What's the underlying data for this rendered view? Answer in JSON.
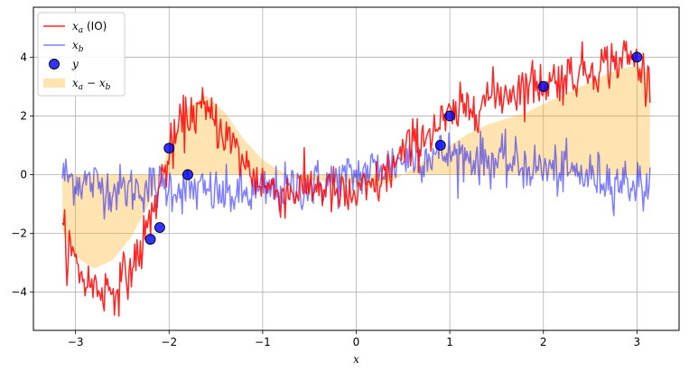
{
  "chart_data": {
    "type": "line",
    "title": "",
    "xlabel": "x",
    "ylabel": "",
    "xlim": [
      -3.45,
      3.45
    ],
    "ylim": [
      -5.3,
      5.7
    ],
    "xticks": [
      -3,
      -2,
      -1,
      0,
      1,
      2,
      3
    ],
    "yticks": [
      -4,
      -2,
      0,
      2,
      4
    ],
    "xtick_labels": [
      "−3",
      "−2",
      "−1",
      "0",
      "1",
      "2",
      "3"
    ],
    "ytick_labels": [
      "−4",
      "−2",
      "0",
      "2",
      "4"
    ],
    "grid": true,
    "legend_position": "top-left",
    "legend": [
      {
        "label": "x_a (IO)",
        "main": "x",
        "sub": "a",
        "suffix": " (IO)",
        "kind": "line",
        "color": "#ff0000"
      },
      {
        "label": "x_b",
        "main": "x",
        "sub": "b",
        "suffix": "",
        "kind": "line",
        "color": "#0000ff"
      },
      {
        "label": "y",
        "main": "y",
        "sub": "",
        "suffix": "",
        "kind": "marker",
        "color": "#0000ff"
      },
      {
        "label": "x_a − x_b",
        "main": "x",
        "sub": "a",
        "suffix": "",
        "extra_main": " − x",
        "extra_sub": "b",
        "kind": "fill",
        "color": "#ffa500"
      }
    ],
    "colors": {
      "xa": "#ff0000",
      "xb": "#0000ff",
      "y": "#0000ff",
      "fill": "#ffa500"
    },
    "series": [
      {
        "name": "x_a (IO)",
        "x": [
          -3.14,
          -3.0,
          -2.9,
          -2.8,
          -2.7,
          -2.6,
          -2.5,
          -2.4,
          -2.3,
          -2.2,
          -2.1,
          -2.0,
          -1.9,
          -1.8,
          -1.7,
          -1.6,
          -1.5,
          -1.4,
          -1.3,
          -1.2,
          -1.1,
          -1.0,
          -0.9,
          -0.8,
          -0.7,
          -0.6,
          -0.5,
          -0.4,
          -0.3,
          -0.2,
          -0.1,
          0.0,
          0.1,
          0.2,
          0.3,
          0.4,
          0.5,
          0.6,
          0.7,
          0.8,
          0.9,
          1.0,
          1.1,
          1.2,
          1.3,
          1.4,
          1.5,
          1.6,
          1.7,
          1.8,
          1.9,
          2.0,
          2.1,
          2.2,
          2.3,
          2.4,
          2.5,
          2.6,
          2.7,
          2.8,
          2.9,
          3.0,
          3.14
        ],
        "values": [
          -2.0,
          -3.0,
          -3.6,
          -3.8,
          -3.9,
          -3.9,
          -3.6,
          -3.2,
          -2.5,
          -1.5,
          -0.4,
          0.6,
          1.5,
          2.0,
          2.2,
          2.1,
          1.8,
          1.4,
          0.9,
          0.4,
          0.0,
          -0.3,
          -0.5,
          -0.6,
          -0.6,
          -0.5,
          -0.4,
          -0.4,
          -0.5,
          -0.7,
          -0.8,
          -0.7,
          -0.6,
          -0.4,
          -0.1,
          0.3,
          0.7,
          1.0,
          1.3,
          1.5,
          1.7,
          1.9,
          2.1,
          2.3,
          2.5,
          2.6,
          2.7,
          2.8,
          2.9,
          3.0,
          3.1,
          3.1,
          3.2,
          3.3,
          3.4,
          3.5,
          3.6,
          3.7,
          3.8,
          3.9,
          4.0,
          3.8,
          3.1
        ]
      },
      {
        "name": "x_b",
        "x": [
          -3.14,
          -3.0,
          -2.8,
          -2.6,
          -2.4,
          -2.2,
          -2.0,
          -1.8,
          -1.6,
          -1.4,
          -1.2,
          -1.0,
          -0.8,
          -0.6,
          -0.4,
          -0.2,
          0.0,
          0.2,
          0.4,
          0.6,
          0.8,
          1.0,
          1.2,
          1.4,
          1.6,
          1.8,
          2.0,
          2.2,
          2.4,
          2.6,
          2.8,
          3.0,
          3.14
        ],
        "values": [
          0.0,
          -0.2,
          -0.3,
          -0.5,
          -0.5,
          -0.4,
          -0.4,
          -0.5,
          -0.6,
          -0.7,
          -0.7,
          -0.6,
          -0.5,
          -0.4,
          -0.3,
          -0.2,
          0.0,
          0.2,
          0.4,
          0.6,
          0.7,
          0.7,
          0.6,
          0.5,
          0.4,
          0.3,
          0.2,
          0.1,
          0.0,
          -0.1,
          -0.2,
          -0.3,
          -0.5
        ]
      },
      {
        "name": "y",
        "x": [
          -2.2,
          -2.1,
          -2.0,
          -1.8,
          0.9,
          1.0,
          2.0,
          3.0
        ],
        "values": [
          -2.2,
          -1.8,
          0.9,
          0.0,
          1.0,
          2.0,
          3.0,
          4.0
        ]
      }
    ],
    "fill_between": {
      "name": "x_a − x_b",
      "x": [
        -3.14,
        -3.0,
        -2.8,
        -2.6,
        -2.4,
        -2.2,
        -2.0,
        -1.8,
        -1.6,
        -1.4,
        -1.2,
        -1.0,
        -0.8,
        -0.6,
        -0.4,
        -0.2,
        0.0,
        0.2,
        0.4,
        0.6,
        0.8,
        1.0,
        1.2,
        1.4,
        1.6,
        1.8,
        2.0,
        2.2,
        2.4,
        2.6,
        2.8,
        3.0,
        3.14
      ],
      "values": [
        -1.9,
        -2.8,
        -3.2,
        -2.9,
        -2.1,
        -0.9,
        0.9,
        2.3,
        2.7,
        2.1,
        1.2,
        0.5,
        0.1,
        -0.2,
        -0.2,
        -0.3,
        -0.3,
        -0.4,
        -0.2,
        0.2,
        0.6,
        1.0,
        1.4,
        1.7,
        1.9,
        2.1,
        2.4,
        2.7,
        3.0,
        3.3,
        3.6,
        3.7,
        3.4
      ]
    }
  }
}
